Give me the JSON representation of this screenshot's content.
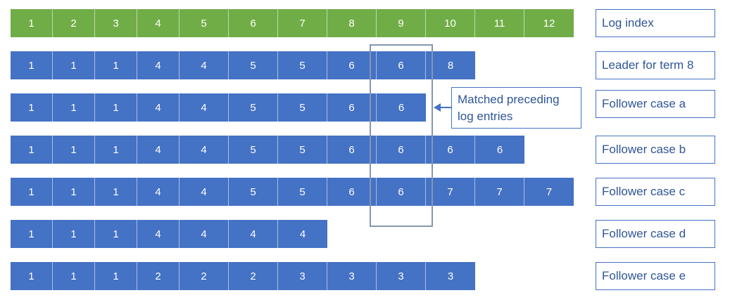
{
  "diagram": {
    "rows": [
      {
        "kind": "idx",
        "label": "Log index",
        "cells": [
          "1",
          "2",
          "3",
          "4",
          "5",
          "6",
          "7",
          "8",
          "9",
          "10",
          "11",
          "12"
        ]
      },
      {
        "kind": "term",
        "label": "Leader for term 8",
        "cells": [
          "1",
          "1",
          "1",
          "4",
          "4",
          "5",
          "5",
          "6",
          "6",
          "8"
        ]
      },
      {
        "kind": "term",
        "label": "Follower case a",
        "cells": [
          "1",
          "1",
          "1",
          "4",
          "4",
          "5",
          "5",
          "6",
          "6"
        ]
      },
      {
        "kind": "term",
        "label": "Follower case b",
        "cells": [
          "1",
          "1",
          "1",
          "4",
          "4",
          "5",
          "5",
          "6",
          "6",
          "6",
          "6"
        ]
      },
      {
        "kind": "term",
        "label": "Follower case c",
        "cells": [
          "1",
          "1",
          "1",
          "4",
          "4",
          "5",
          "5",
          "6",
          "6",
          "7",
          "7",
          "7"
        ]
      },
      {
        "kind": "term",
        "label": "Follower case d",
        "cells": [
          "1",
          "1",
          "1",
          "4",
          "4",
          "4",
          "4"
        ]
      },
      {
        "kind": "term",
        "label": "Follower case e",
        "cells": [
          "1",
          "1",
          "1",
          "2",
          "2",
          "2",
          "3",
          "3",
          "3",
          "3"
        ]
      }
    ],
    "callout": "Matched preceding log entries",
    "colors": {
      "index": "#70ad47",
      "term": "#4472c4",
      "label_text": "#2f5597",
      "highlight": "#8496b0"
    }
  }
}
